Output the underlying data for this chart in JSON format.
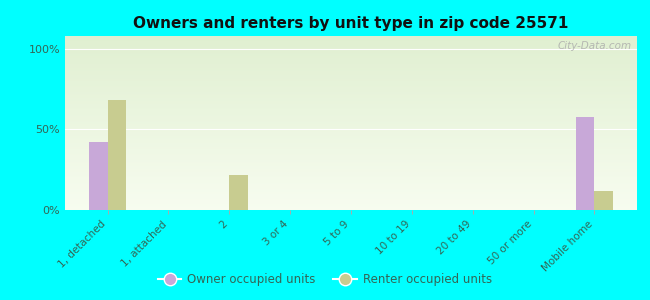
{
  "title": "Owners and renters by unit type in zip code 25571",
  "categories": [
    "1, detached",
    "1, attached",
    "2",
    "3 or 4",
    "5 to 9",
    "10 to 19",
    "20 to 49",
    "50 or more",
    "Mobile home"
  ],
  "owner_values": [
    42,
    0,
    0,
    0,
    0,
    0,
    0,
    0,
    58
  ],
  "renter_values": [
    68,
    0,
    22,
    0,
    0,
    0,
    0,
    0,
    12
  ],
  "owner_color": "#c8a8d8",
  "renter_color": "#c8cc90",
  "background_color": "#00ffff",
  "plot_bg_color": "#e8f0d8",
  "yticks": [
    0,
    50,
    100
  ],
  "ylim": [
    0,
    108
  ],
  "bar_width": 0.3,
  "legend_owner": "Owner occupied units",
  "legend_renter": "Renter occupied units",
  "watermark": "City-Data.com",
  "tick_label_color": "#336655",
  "grid_color": "#ffffff",
  "title_color": "#111111"
}
